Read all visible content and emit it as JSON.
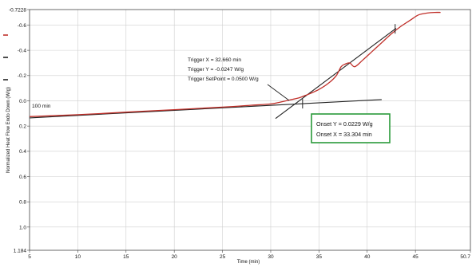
{
  "chart_data": {
    "type": "line",
    "title": "",
    "xlabel": "Time (min)",
    "ylabel": "Normalized Heat Flow Endo Down (W/g)",
    "xlim": [
      5,
      50.7
    ],
    "ylim": [
      -0.7228,
      1.184
    ],
    "y_inverted": true,
    "grid": true,
    "x_ticks": [
      5,
      10,
      15,
      20,
      25,
      30,
      35,
      40,
      45,
      50.7
    ],
    "x_tick_labels": [
      "5",
      "10",
      "15",
      "20",
      "25",
      "30",
      "35",
      "40",
      "45",
      "50.7"
    ],
    "y_ticks": [
      -0.7228,
      -0.6,
      -0.4,
      -0.2,
      0.0,
      0.2,
      0.4,
      0.6,
      0.8,
      1.0,
      1.184
    ],
    "y_tick_labels": [
      "-0.7228",
      "-0.6",
      "-0.4",
      "-0.2",
      "0.0",
      "0.2",
      "0.4",
      "0.6",
      "0.8",
      "1.0",
      "1.184"
    ],
    "series": [
      {
        "color": "#c0302a",
        "x": [
          5,
          10,
          15,
          20,
          25,
          28,
          30,
          31,
          32,
          33,
          33.5,
          34,
          35,
          36,
          36.8,
          37.3,
          37.7,
          38.2,
          38.7,
          39.5,
          40.5,
          41.5,
          42.5,
          43.5,
          44.5,
          45.3,
          46.2,
          47,
          47.6
        ],
        "y": [
          0.125,
          0.11,
          0.09,
          0.07,
          0.05,
          0.035,
          0.025,
          0.01,
          -0.007,
          -0.025,
          -0.04,
          -0.055,
          -0.09,
          -0.14,
          -0.2,
          -0.27,
          -0.29,
          -0.3,
          -0.27,
          -0.32,
          -0.39,
          -0.46,
          -0.53,
          -0.59,
          -0.64,
          -0.68,
          -0.695,
          -0.7,
          -0.7
        ]
      }
    ],
    "tangent_lines": [
      {
        "color": "#222222",
        "x": [
          5,
          41.5
        ],
        "y": [
          0.135,
          -0.01
        ]
      },
      {
        "color": "#222222",
        "x": [
          30.5,
          43
        ],
        "y": [
          0.14,
          -0.575
        ]
      }
    ],
    "x_level_label": "100 min",
    "annotations": {
      "trigger_lines": [
        "Trigger X = 32.660 min",
        "Trigger Y = -0.0247 W/g",
        "Trigger SetPoint = 0.0500 W/g"
      ],
      "onset_lines": [
        "Onset Y = 0.0229 W/g",
        "Onset X = 33.304 min"
      ],
      "onset_box_color": "#2a9a3a"
    },
    "legend_swatches": [
      "#c0302a",
      "#222222",
      "#222222"
    ]
  }
}
